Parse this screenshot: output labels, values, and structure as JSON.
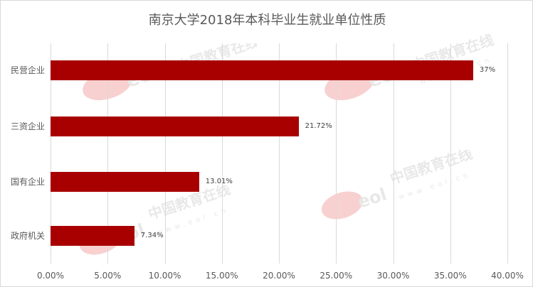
{
  "chart_data": {
    "type": "bar",
    "orientation": "horizontal",
    "title": "南京大学2018年本科毕业生就业单位性质",
    "categories": [
      "民营企业",
      "三资企业",
      "国有企业",
      "政府机关"
    ],
    "values": [
      37.0,
      21.72,
      13.01,
      7.34
    ],
    "value_labels": [
      "37%",
      "21.72%",
      "13.01%",
      "7.34%"
    ],
    "xlabel": "",
    "ylabel": "",
    "xlim": [
      0,
      40
    ],
    "x_ticks": [
      "0.00%",
      "5.00%",
      "10.00%",
      "15.00%",
      "20.00%",
      "25.00%",
      "30.00%",
      "35.00%",
      "40.00%"
    ],
    "x_tick_values": [
      0,
      5,
      10,
      15,
      20,
      25,
      30,
      35,
      40
    ],
    "grid": "vertical",
    "legend": "none",
    "bar_color": "#a80000"
  },
  "watermark": {
    "brand": "中国教育在线",
    "logo": "eol",
    "url": "www.eol.cn"
  },
  "colors": {
    "bar": "#a80000",
    "grid": "#d9d9d9",
    "text": "#595959",
    "watermark_logo": "#e03030"
  }
}
